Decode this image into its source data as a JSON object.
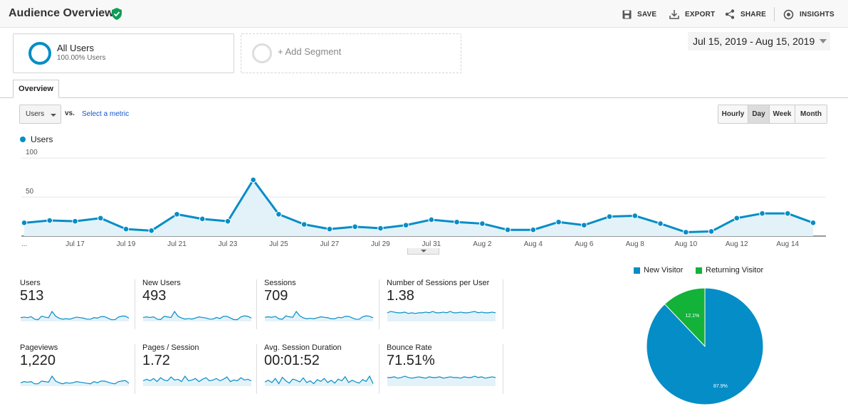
{
  "header": {
    "title": "Audience Overview",
    "actions": [
      {
        "label": "SAVE",
        "icon": "save-icon"
      },
      {
        "label": "EXPORT",
        "icon": "export-icon"
      },
      {
        "label": "SHARE",
        "icon": "share-icon"
      },
      {
        "label": "INSIGHTS",
        "icon": "insights-icon"
      }
    ]
  },
  "segments": {
    "all_users": {
      "name": "All Users",
      "sub": "100.00% Users"
    },
    "add_segment": "+ Add Segment"
  },
  "date_range": "Jul 15, 2019 - Aug 15, 2019",
  "tabs": {
    "overview": "Overview"
  },
  "metric": {
    "selected": "Users",
    "vs": "vs.",
    "select_metric": "Select a metric"
  },
  "granularity": {
    "options": [
      "Hourly",
      "Day",
      "Week",
      "Month"
    ],
    "selected": "Day"
  },
  "legend": {
    "users": "Users"
  },
  "colors": {
    "primary": "#058dc7",
    "returning": "#13b239",
    "fill": "#e3f2f9"
  },
  "chart_data": {
    "type": "area",
    "series": [
      {
        "name": "Users",
        "values": [
          17,
          20,
          19,
          23,
          9,
          7,
          28,
          22,
          19,
          72,
          28,
          15,
          9,
          12,
          10,
          14,
          21,
          18,
          16,
          8,
          8,
          18,
          14,
          25,
          26,
          16,
          5,
          6,
          23,
          29,
          29,
          17
        ]
      }
    ],
    "x_tick_labels": [
      "...",
      "Jul 17",
      "Jul 19",
      "Jul 21",
      "Jul 23",
      "Jul 25",
      "Jul 27",
      "Jul 29",
      "Jul 31",
      "Aug 2",
      "Aug 4",
      "Aug 6",
      "Aug 8",
      "Aug 10",
      "Aug 12",
      "Aug 14"
    ],
    "y_tick_labels": [
      "100",
      "50"
    ],
    "ylim": [
      0,
      100
    ],
    "grid": true
  },
  "scorecards": [
    {
      "label": "Users",
      "value": "513",
      "spark": [
        6,
        7,
        6,
        8,
        3,
        2,
        9,
        7,
        6,
        18,
        9,
        5,
        3,
        4,
        3,
        5,
        7,
        6,
        5,
        3,
        3,
        6,
        5,
        8,
        8,
        5,
        2,
        2,
        7,
        9,
        9,
        5
      ]
    },
    {
      "label": "New Users",
      "value": "493",
      "spark": [
        6,
        7,
        6,
        7,
        3,
        2,
        8,
        7,
        6,
        17,
        8,
        5,
        3,
        4,
        3,
        5,
        7,
        6,
        5,
        3,
        3,
        6,
        4,
        8,
        8,
        5,
        2,
        2,
        7,
        9,
        8,
        5
      ]
    },
    {
      "label": "Sessions",
      "value": "709",
      "spark": [
        7,
        8,
        7,
        9,
        4,
        3,
        10,
        8,
        7,
        19,
        10,
        6,
        4,
        5,
        4,
        6,
        8,
        7,
        6,
        4,
        4,
        7,
        6,
        9,
        9,
        6,
        3,
        3,
        8,
        10,
        9,
        6
      ]
    },
    {
      "label": "Number of Sessions per User",
      "value": "1.38",
      "spark": [
        12,
        14,
        13,
        12,
        12,
        13,
        11,
        12,
        11,
        12,
        12,
        13,
        12,
        14,
        12,
        12,
        13,
        12,
        14,
        12,
        12,
        13,
        12,
        12,
        13,
        14,
        12,
        13,
        12,
        12,
        13,
        12
      ]
    },
    {
      "label": "Pageviews",
      "value": "1,220",
      "spark": [
        5,
        7,
        6,
        7,
        3,
        3,
        8,
        7,
        6,
        17,
        8,
        5,
        3,
        5,
        4,
        5,
        7,
        6,
        5,
        4,
        3,
        7,
        5,
        8,
        8,
        6,
        4,
        3,
        7,
        8,
        9,
        4
      ]
    },
    {
      "label": "Pages / Session",
      "value": "1.72",
      "spark": [
        6,
        8,
        6,
        9,
        5,
        10,
        7,
        6,
        11,
        7,
        8,
        5,
        12,
        6,
        7,
        9,
        5,
        8,
        10,
        6,
        7,
        9,
        6,
        8,
        11,
        5,
        7,
        6,
        10,
        7,
        8,
        6
      ]
    },
    {
      "label": "Avg. Session Duration",
      "value": "00:01:52",
      "spark": [
        6,
        9,
        5,
        12,
        3,
        14,
        8,
        4,
        11,
        9,
        6,
        13,
        5,
        8,
        3,
        10,
        7,
        12,
        5,
        9,
        4,
        11,
        8,
        15,
        5,
        9,
        6,
        4,
        10,
        7,
        16,
        3
      ]
    },
    {
      "label": "Bounce Rate",
      "value": "71.51%",
      "spark": [
        12,
        12,
        13,
        11,
        12,
        14,
        12,
        11,
        12,
        13,
        12,
        11,
        13,
        12,
        12,
        13,
        11,
        12,
        13,
        12,
        12,
        11,
        13,
        12,
        12,
        14,
        12,
        13,
        11,
        12,
        13,
        12
      ]
    }
  ],
  "pie_chart": {
    "type": "pie",
    "legend": [
      {
        "name": "New Visitor",
        "color": "#058dc7"
      },
      {
        "name": "Returning Visitor",
        "color": "#13b239"
      }
    ],
    "slices": [
      {
        "name": "New Visitor",
        "value": 87.9,
        "label": "87.9%"
      },
      {
        "name": "Returning Visitor",
        "value": 12.1,
        "label": "12.1%"
      }
    ]
  }
}
